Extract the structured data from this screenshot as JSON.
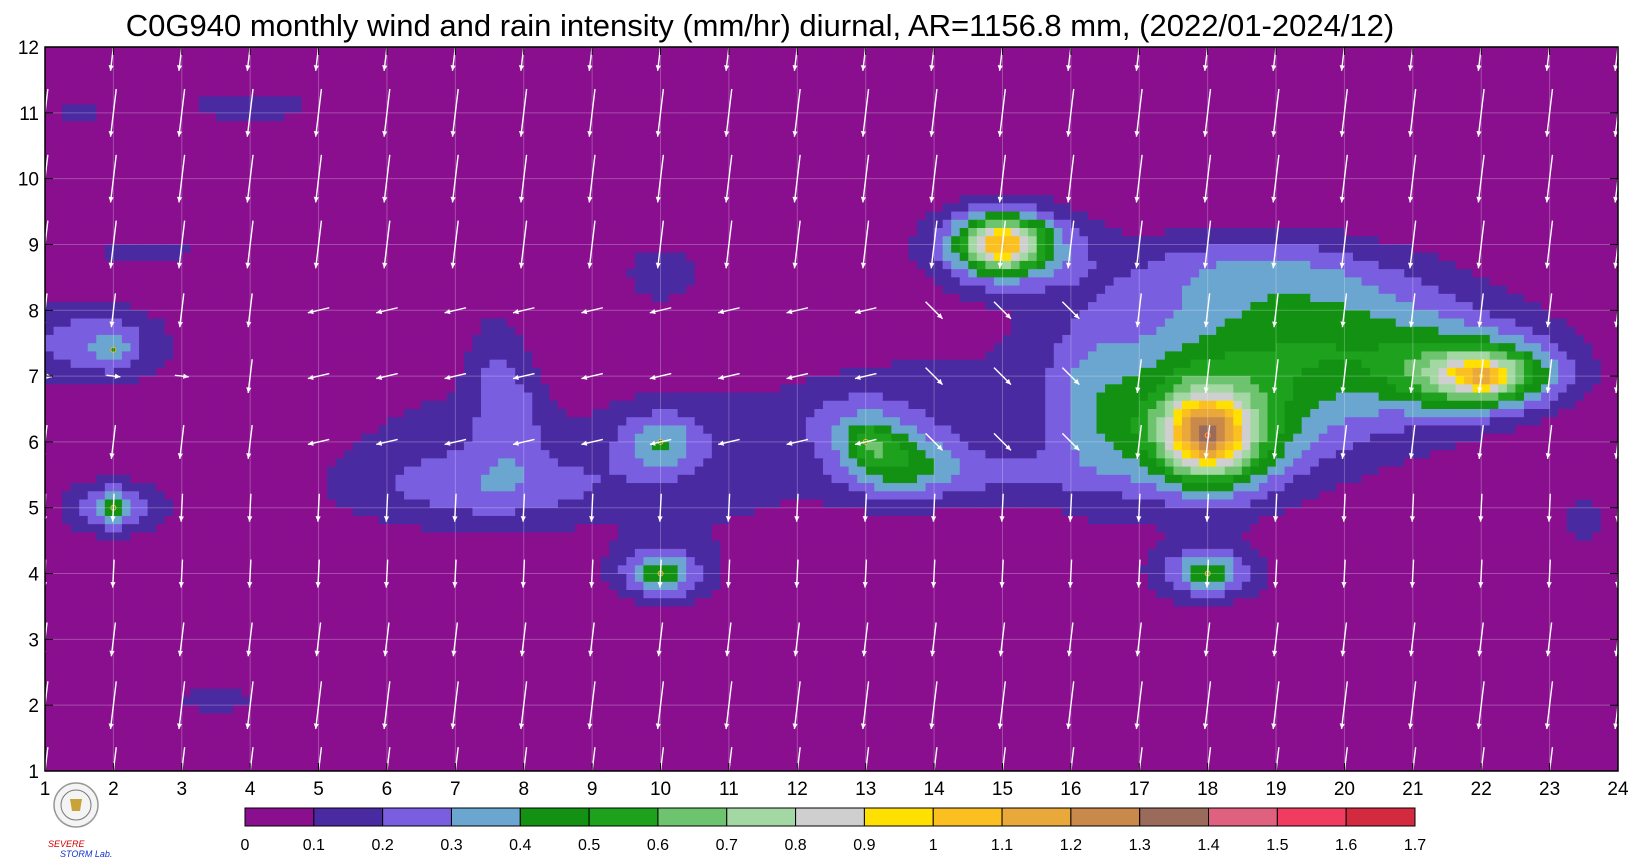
{
  "chart_data": {
    "type": "contour",
    "title": "C0G940 monthly wind and rain intensity (mm/hr) diurnal, AR=1156.8 mm, (2022/01-2024/12)",
    "xlabel": "",
    "ylabel": "",
    "xlim": [
      1,
      24
    ],
    "ylim": [
      1,
      12
    ],
    "x_ticks": [
      "1",
      "2",
      "3",
      "4",
      "5",
      "6",
      "7",
      "8",
      "9",
      "10",
      "11",
      "12",
      "13",
      "14",
      "15",
      "16",
      "17",
      "18",
      "19",
      "20",
      "21",
      "22",
      "23",
      "24"
    ],
    "y_ticks": [
      "1",
      "2",
      "3",
      "4",
      "5",
      "6",
      "7",
      "8",
      "9",
      "10",
      "11",
      "12"
    ],
    "grid": true,
    "colorbar": {
      "orientation": "horizontal",
      "levels": [
        0,
        0.1,
        0.2,
        0.3,
        0.4,
        0.5,
        0.6,
        0.7,
        0.8,
        0.9,
        1,
        1.1,
        1.2,
        1.3,
        1.4,
        1.5,
        1.6,
        1.7
      ],
      "labels": [
        "0",
        "0.1",
        "0.2",
        "0.3",
        "0.4",
        "0.5",
        "0.6",
        "0.7",
        "0.8",
        "0.9",
        "1",
        "1.1",
        "1.2",
        "1.3",
        "1.4",
        "1.5",
        "1.6",
        "1.7"
      ],
      "colors": [
        "#8a0f8f",
        "#4a2aa0",
        "#7a5ee0",
        "#6aa6d0",
        "#129112",
        "#1ea21e",
        "#6ec46e",
        "#a3d7a3",
        "#cfcfcf",
        "#ffe000",
        "#fbbf20",
        "#e9a83a",
        "#c9894a",
        "#9a6b5a",
        "#e06080",
        "#f03c60",
        "#d42a40"
      ]
    },
    "rain_maxima": [
      {
        "x": 2,
        "y": 7.4,
        "value": 0.45
      },
      {
        "x": 2,
        "y": 5,
        "value": 0.45
      },
      {
        "x": 10,
        "y": 6,
        "value": 0.45
      },
      {
        "x": 10,
        "y": 4,
        "value": 0.5
      },
      {
        "x": 13,
        "y": 6,
        "value": 0.55
      },
      {
        "x": 15,
        "y": 9,
        "value": 1.05
      },
      {
        "x": 18,
        "y": 6.1,
        "value": 1.55
      },
      {
        "x": 18,
        "y": 4,
        "value": 0.5
      },
      {
        "x": 22,
        "y": 7,
        "value": 0.95
      }
    ],
    "wind_vectors": "white arrows at every hour (1–24) and month (1–12); mostly pointing down (southward) with a slight leftward tilt, stronger arrows in months 1–2 and 9–12"
  },
  "logo": {
    "name": "Severe Storm Lab. logo",
    "text_top": "SEVERE",
    "text_bottom": "STORM Lab."
  }
}
